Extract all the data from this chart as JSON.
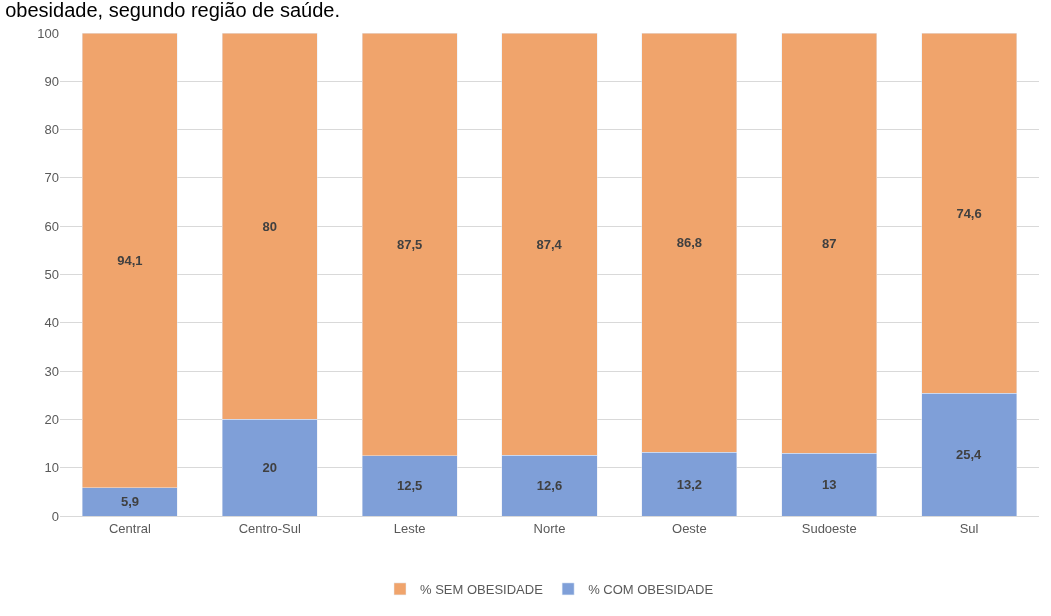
{
  "chart_data": {
    "type": "bar",
    "stacked": true,
    "title": "obesidade, segundo região de saúde.",
    "categories": [
      "Central",
      "Centro-Sul",
      "Leste",
      "Norte",
      "Oeste",
      "Sudoeste",
      "Sul"
    ],
    "series": [
      {
        "name": "% COM OBESIDADE",
        "color": "#7f9fd8",
        "values": [
          5.9,
          20,
          12.5,
          12.6,
          13.2,
          13,
          25.4
        ],
        "value_labels": [
          "5,9",
          "20",
          "12,5",
          "12,6",
          "13,2",
          "13",
          "25,4"
        ]
      },
      {
        "name": "% SEM OBESIDADE",
        "color": "#f0a46c",
        "values": [
          94.1,
          80,
          87.5,
          87.4,
          86.8,
          87,
          74.6
        ],
        "value_labels": [
          "94,1",
          "80",
          "87,5",
          "87,4",
          "86,8",
          "87",
          "74,6"
        ]
      }
    ],
    "ylim": [
      0,
      100
    ],
    "yticks": [
      0,
      10,
      20,
      30,
      40,
      50,
      60,
      70,
      80,
      90,
      100
    ],
    "grid": "y",
    "legend": "bottom"
  }
}
